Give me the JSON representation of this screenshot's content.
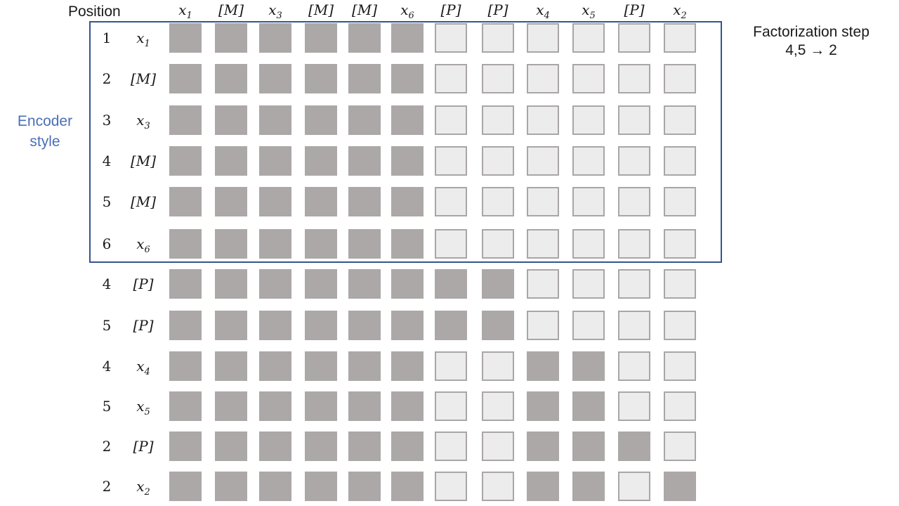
{
  "position_header": "Position",
  "encoder_label": [
    "Encoder",
    "style"
  ],
  "factorization": [
    "Factorization step",
    "4,5 → 2"
  ],
  "colors": {
    "filled": "#aba8a7",
    "empty": "#ececec",
    "empty_border": "#a9a6a5",
    "frame": "#34568b",
    "label_blue": "#4a6fb8"
  },
  "columns": [
    {
      "base": "x",
      "sub": "1"
    },
    {
      "base": "[M]",
      "sub": ""
    },
    {
      "base": "x",
      "sub": "3"
    },
    {
      "base": "[M]",
      "sub": ""
    },
    {
      "base": "[M]",
      "sub": ""
    },
    {
      "base": "x",
      "sub": "6"
    },
    {
      "base": "[P]",
      "sub": ""
    },
    {
      "base": "[P]",
      "sub": ""
    },
    {
      "base": "x",
      "sub": "4"
    },
    {
      "base": "x",
      "sub": "5"
    },
    {
      "base": "[P]",
      "sub": ""
    },
    {
      "base": "x",
      "sub": "2"
    }
  ],
  "rows": [
    {
      "position": "1",
      "token": {
        "base": "x",
        "sub": "1"
      },
      "mask": [
        1,
        1,
        1,
        1,
        1,
        1,
        0,
        0,
        0,
        0,
        0,
        0
      ]
    },
    {
      "position": "2",
      "token": {
        "base": "[M]",
        "sub": ""
      },
      "mask": [
        1,
        1,
        1,
        1,
        1,
        1,
        0,
        0,
        0,
        0,
        0,
        0
      ]
    },
    {
      "position": "3",
      "token": {
        "base": "x",
        "sub": "3"
      },
      "mask": [
        1,
        1,
        1,
        1,
        1,
        1,
        0,
        0,
        0,
        0,
        0,
        0
      ]
    },
    {
      "position": "4",
      "token": {
        "base": "[M]",
        "sub": ""
      },
      "mask": [
        1,
        1,
        1,
        1,
        1,
        1,
        0,
        0,
        0,
        0,
        0,
        0
      ]
    },
    {
      "position": "5",
      "token": {
        "base": "[M]",
        "sub": ""
      },
      "mask": [
        1,
        1,
        1,
        1,
        1,
        1,
        0,
        0,
        0,
        0,
        0,
        0
      ]
    },
    {
      "position": "6",
      "token": {
        "base": "x",
        "sub": "6"
      },
      "mask": [
        1,
        1,
        1,
        1,
        1,
        1,
        0,
        0,
        0,
        0,
        0,
        0
      ]
    },
    {
      "position": "4",
      "token": {
        "base": "[P]",
        "sub": ""
      },
      "mask": [
        1,
        1,
        1,
        1,
        1,
        1,
        1,
        1,
        0,
        0,
        0,
        0
      ]
    },
    {
      "position": "5",
      "token": {
        "base": "[P]",
        "sub": ""
      },
      "mask": [
        1,
        1,
        1,
        1,
        1,
        1,
        1,
        1,
        0,
        0,
        0,
        0
      ]
    },
    {
      "position": "4",
      "token": {
        "base": "x",
        "sub": "4"
      },
      "mask": [
        1,
        1,
        1,
        1,
        1,
        1,
        0,
        0,
        1,
        1,
        0,
        0
      ]
    },
    {
      "position": "5",
      "token": {
        "base": "x",
        "sub": "5"
      },
      "mask": [
        1,
        1,
        1,
        1,
        1,
        1,
        0,
        0,
        1,
        1,
        0,
        0
      ]
    },
    {
      "position": "2",
      "token": {
        "base": "[P]",
        "sub": ""
      },
      "mask": [
        1,
        1,
        1,
        1,
        1,
        1,
        0,
        0,
        1,
        1,
        1,
        0
      ]
    },
    {
      "position": "2",
      "token": {
        "base": "x",
        "sub": "2"
      },
      "mask": [
        1,
        1,
        1,
        1,
        1,
        1,
        0,
        0,
        1,
        1,
        0,
        1
      ]
    }
  ]
}
